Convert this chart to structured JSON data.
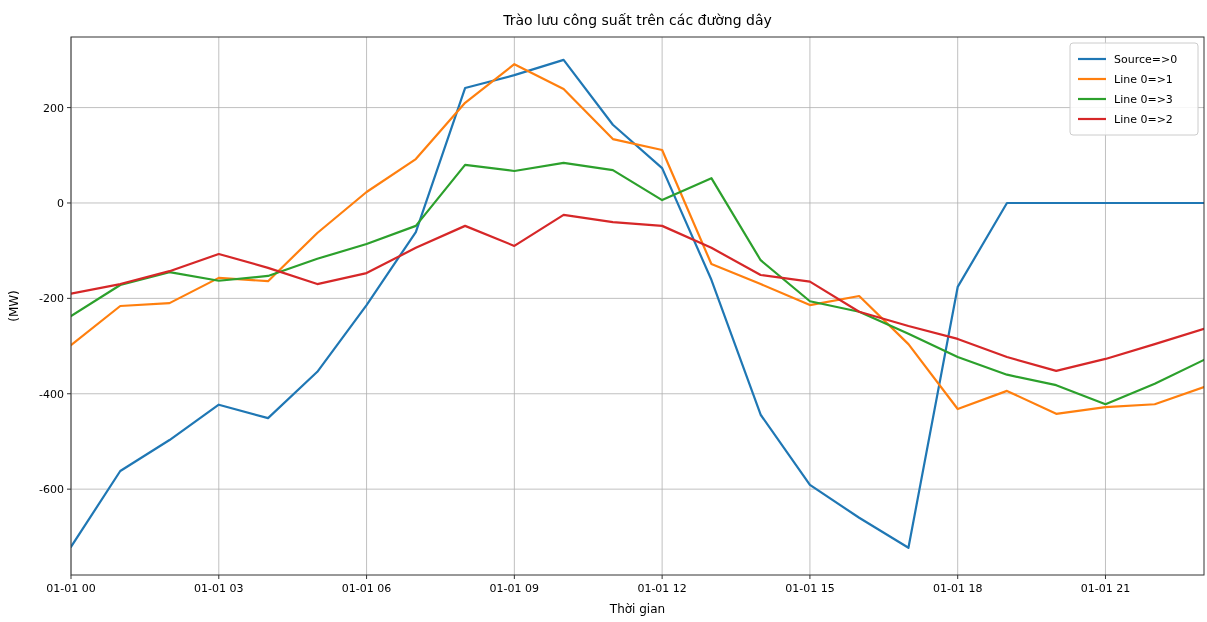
{
  "chart_data": {
    "type": "line",
    "title": "Trào lưu công suất trên các đường dây",
    "xlabel": "Thời gian",
    "ylabel": "(MW)",
    "categories": [
      "01-01 00",
      null,
      null,
      "01-01 03",
      null,
      null,
      "01-01 06",
      null,
      null,
      "01-01 09",
      null,
      null,
      "01-01 12",
      null,
      null,
      "01-01 15",
      null,
      null,
      "01-01 18",
      null,
      null,
      "01-01 21",
      null,
      null
    ],
    "ylim": [
      -780,
      348
    ],
    "yticks": [
      -600,
      -400,
      -200,
      0,
      200
    ],
    "grid": true,
    "legend": "top right",
    "line_style": "solid",
    "marker": "none",
    "series": [
      {
        "name": "Source=>0",
        "color": "#1f77b4",
        "values": [
          -721,
          -562,
          -497,
          -423,
          -451,
          -354,
          -214,
          -61,
          241,
          268,
          300,
          164,
          73,
          -161,
          -444,
          -591,
          -660,
          -723,
          -176,
          0,
          0,
          0,
          0,
          0
        ]
      },
      {
        "name": "Line 0=>1",
        "color": "#ff7f0e",
        "values": [
          -298,
          -216,
          -210,
          -157,
          -164,
          -63,
          23,
          92,
          210,
          291,
          239,
          134,
          111,
          -128,
          -170,
          -214,
          -195,
          -296,
          -432,
          -394,
          -442,
          -428,
          -422,
          -386
        ]
      },
      {
        "name": "Line 0=>3",
        "color": "#2ca02c",
        "values": [
          -237,
          -172,
          -145,
          -163,
          -153,
          -117,
          -86,
          -48,
          80,
          67,
          84,
          69,
          6,
          52,
          -120,
          -206,
          -228,
          -274,
          -323,
          -360,
          -382,
          -422,
          -379,
          -329
        ]
      },
      {
        "name": "Line 0=>2",
        "color": "#d62728",
        "values": [
          -190,
          -170,
          -143,
          -107,
          -136,
          -170,
          -147,
          -94,
          -48,
          -90,
          -25,
          -40,
          -48,
          -94,
          -151,
          -165,
          -228,
          -258,
          -285,
          -323,
          -352,
          -327,
          -296,
          -264
        ]
      }
    ]
  }
}
